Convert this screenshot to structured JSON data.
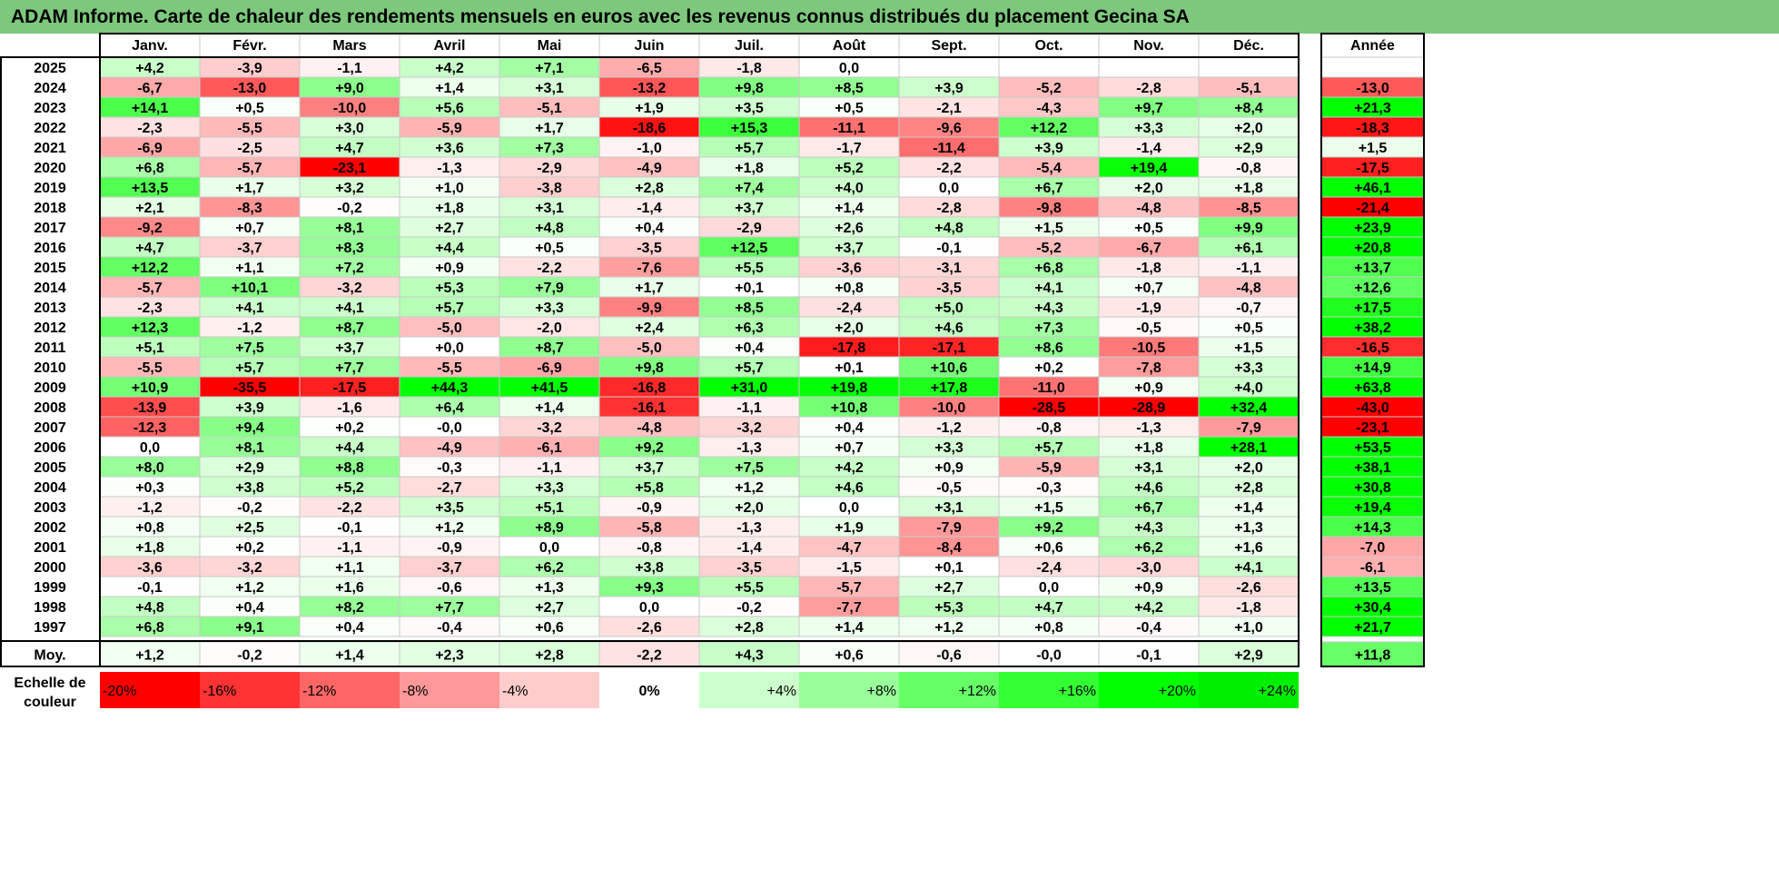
{
  "title": "ADAM Informe. Carte de chaleur des rendements mensuels en euros avec les revenus connus distribués du placement Gecina SA",
  "chart_data": {
    "type": "heatmap",
    "title": "ADAM Informe. Carte de chaleur des rendements mensuels en euros avec les revenus connus distribués du placement Gecina SA",
    "columns": [
      "Janv.",
      "Févr.",
      "Mars",
      "Avril",
      "Mai",
      "Juin",
      "Juil.",
      "Août",
      "Sept.",
      "Oct.",
      "Nov.",
      "Déc."
    ],
    "year_header": "Année",
    "rows": [
      {
        "label": "2025",
        "values": [
          "+4,2",
          "-3,9",
          "-1,1",
          "+4,2",
          "+7,1",
          "-6,5",
          "-1,8",
          "0,0",
          "",
          "",
          "",
          ""
        ],
        "year": ""
      },
      {
        "label": "2024",
        "values": [
          "-6,7",
          "-13,0",
          "+9,0",
          "+1,4",
          "+3,1",
          "-13,2",
          "+9,8",
          "+8,5",
          "+3,9",
          "-5,2",
          "-2,8",
          "-5,1"
        ],
        "year": "-13,0"
      },
      {
        "label": "2023",
        "values": [
          "+14,1",
          "+0,5",
          "-10,0",
          "+5,6",
          "-5,1",
          "+1,9",
          "+3,5",
          "+0,5",
          "-2,1",
          "-4,3",
          "+9,7",
          "+8,4"
        ],
        "year": "+21,3"
      },
      {
        "label": "2022",
        "values": [
          "-2,3",
          "-5,5",
          "+3,0",
          "-5,9",
          "+1,7",
          "-18,6",
          "+15,3",
          "-11,1",
          "-9,6",
          "+12,2",
          "+3,3",
          "+2,0"
        ],
        "year": "-18,3"
      },
      {
        "label": "2021",
        "values": [
          "-6,9",
          "-2,5",
          "+4,7",
          "+3,6",
          "+7,3",
          "-1,0",
          "+5,7",
          "-1,7",
          "-11,4",
          "+3,9",
          "-1,4",
          "+2,9"
        ],
        "year": "+1,5"
      },
      {
        "label": "2020",
        "values": [
          "+6,8",
          "-5,7",
          "-23,1",
          "-1,3",
          "-2,9",
          "-4,9",
          "+1,8",
          "+5,2",
          "-2,2",
          "-5,4",
          "+19,4",
          "-0,8"
        ],
        "year": "-17,5"
      },
      {
        "label": "2019",
        "values": [
          "+13,5",
          "+1,7",
          "+3,2",
          "+1,0",
          "-3,8",
          "+2,8",
          "+7,4",
          "+4,0",
          "0,0",
          "+6,7",
          "+2,0",
          "+1,8"
        ],
        "year": "+46,1"
      },
      {
        "label": "2018",
        "values": [
          "+2,1",
          "-8,3",
          "-0,2",
          "+1,8",
          "+3,1",
          "-1,4",
          "+3,7",
          "+1,4",
          "-2,8",
          "-9,8",
          "-4,8",
          "-8,5"
        ],
        "year": "-21,4"
      },
      {
        "label": "2017",
        "values": [
          "-9,2",
          "+0,7",
          "+8,1",
          "+2,7",
          "+4,8",
          "+0,4",
          "-2,9",
          "+2,6",
          "+4,8",
          "+1,5",
          "+0,5",
          "+9,9"
        ],
        "year": "+23,9"
      },
      {
        "label": "2016",
        "values": [
          "+4,7",
          "-3,7",
          "+8,3",
          "+4,4",
          "+0,5",
          "-3,5",
          "+12,5",
          "+3,7",
          "-0,1",
          "-5,2",
          "-6,7",
          "+6,1"
        ],
        "year": "+20,8"
      },
      {
        "label": "2015",
        "values": [
          "+12,2",
          "+1,1",
          "+7,2",
          "+0,9",
          "-2,2",
          "-7,6",
          "+5,5",
          "-3,6",
          "-3,1",
          "+6,8",
          "-1,8",
          "-1,1"
        ],
        "year": "+13,7"
      },
      {
        "label": "2014",
        "values": [
          "-5,7",
          "+10,1",
          "-3,2",
          "+5,3",
          "+7,9",
          "+1,7",
          "+0,1",
          "+0,8",
          "-3,5",
          "+4,1",
          "+0,7",
          "-4,8"
        ],
        "year": "+12,6"
      },
      {
        "label": "2013",
        "values": [
          "-2,3",
          "+4,1",
          "+4,1",
          "+5,7",
          "+3,3",
          "-9,9",
          "+8,5",
          "-2,4",
          "+5,0",
          "+4,3",
          "-1,9",
          "-0,7"
        ],
        "year": "+17,5"
      },
      {
        "label": "2012",
        "values": [
          "+12,3",
          "-1,2",
          "+8,7",
          "-5,0",
          "-2,0",
          "+2,4",
          "+6,3",
          "+2,0",
          "+4,6",
          "+7,3",
          "-0,5",
          "+0,5"
        ],
        "year": "+38,2"
      },
      {
        "label": "2011",
        "values": [
          "+5,1",
          "+7,5",
          "+3,7",
          "+0,0",
          "+8,7",
          "-5,0",
          "+0,4",
          "-17,8",
          "-17,1",
          "+8,6",
          "-10,5",
          "+1,5"
        ],
        "year": "-16,5"
      },
      {
        "label": "2010",
        "values": [
          "-5,5",
          "+5,7",
          "+7,7",
          "-5,5",
          "-6,9",
          "+9,8",
          "+5,7",
          "+0,1",
          "+10,6",
          "+0,2",
          "-7,8",
          "+3,3"
        ],
        "year": "+14,9"
      },
      {
        "label": "2009",
        "values": [
          "+10,9",
          "-35,5",
          "-17,5",
          "+44,3",
          "+41,5",
          "-16,8",
          "+31,0",
          "+19,8",
          "+17,8",
          "-11,0",
          "+0,9",
          "+4,0"
        ],
        "year": "+63,8"
      },
      {
        "label": "2008",
        "values": [
          "-13,9",
          "+3,9",
          "-1,6",
          "+6,4",
          "+1,4",
          "-16,1",
          "-1,1",
          "+10,8",
          "-10,0",
          "-28,5",
          "-28,9",
          "+32,4"
        ],
        "year": "-43,0"
      },
      {
        "label": "2007",
        "values": [
          "-12,3",
          "+9,4",
          "+0,2",
          "-0,0",
          "-3,2",
          "-4,8",
          "-3,2",
          "+0,4",
          "-1,2",
          "-0,8",
          "-1,3",
          "-7,9"
        ],
        "year": "-23,1"
      },
      {
        "label": "2006",
        "values": [
          "0,0",
          "+8,1",
          "+4,4",
          "-4,9",
          "-6,1",
          "+9,2",
          "-1,3",
          "+0,7",
          "+3,3",
          "+5,7",
          "+1,8",
          "+28,1"
        ],
        "year": "+53,5"
      },
      {
        "label": "2005",
        "values": [
          "+8,0",
          "+2,9",
          "+8,8",
          "-0,3",
          "-1,1",
          "+3,7",
          "+7,5",
          "+4,2",
          "+0,9",
          "-5,9",
          "+3,1",
          "+2,0"
        ],
        "year": "+38,1"
      },
      {
        "label": "2004",
        "values": [
          "+0,3",
          "+3,8",
          "+5,2",
          "-2,7",
          "+3,3",
          "+5,8",
          "+1,2",
          "+4,6",
          "-0,5",
          "-0,3",
          "+4,6",
          "+2,8"
        ],
        "year": "+30,8"
      },
      {
        "label": "2003",
        "values": [
          "-1,2",
          "-0,2",
          "-2,2",
          "+3,5",
          "+5,1",
          "-0,9",
          "+2,0",
          "0,0",
          "+3,1",
          "+1,5",
          "+6,7",
          "+1,4"
        ],
        "year": "+19,4"
      },
      {
        "label": "2002",
        "values": [
          "+0,8",
          "+2,5",
          "-0,1",
          "+1,2",
          "+8,9",
          "-5,8",
          "-1,3",
          "+1,9",
          "-7,9",
          "+9,2",
          "+4,3",
          "+1,3"
        ],
        "year": "+14,3"
      },
      {
        "label": "2001",
        "values": [
          "+1,8",
          "+0,2",
          "-1,1",
          "-0,9",
          "0,0",
          "-0,8",
          "-1,4",
          "-4,7",
          "-8,4",
          "+0,6",
          "+6,2",
          "+1,6"
        ],
        "year": "-7,0"
      },
      {
        "label": "2000",
        "values": [
          "-3,6",
          "-3,2",
          "+1,1",
          "-3,7",
          "+6,2",
          "+3,8",
          "-3,5",
          "-1,5",
          "+0,1",
          "-2,4",
          "-3,0",
          "+4,1"
        ],
        "year": "-6,1"
      },
      {
        "label": "1999",
        "values": [
          "-0,1",
          "+1,2",
          "+1,6",
          "-0,6",
          "+1,3",
          "+9,3",
          "+5,5",
          "-5,7",
          "+2,7",
          "0,0",
          "+0,9",
          "-2,6"
        ],
        "year": "+13,5"
      },
      {
        "label": "1998",
        "values": [
          "+4,8",
          "+0,4",
          "+8,2",
          "+7,7",
          "+2,7",
          "0,0",
          "-0,2",
          "-7,7",
          "+5,3",
          "+4,7",
          "+4,2",
          "-1,8"
        ],
        "year": "+30,4"
      },
      {
        "label": "1997",
        "values": [
          "+6,8",
          "+9,1",
          "+0,4",
          "-0,4",
          "+0,6",
          "-2,6",
          "+2,8",
          "+1,4",
          "+1,2",
          "+0,8",
          "-0,4",
          "+1,0"
        ],
        "year": "+21,7"
      }
    ],
    "average": {
      "label": "Moy.",
      "values": [
        "+1,2",
        "-0,2",
        "+1,4",
        "+2,3",
        "+2,8",
        "-2,2",
        "+4,3",
        "+0,6",
        "-0,6",
        "-0,0",
        "-0,1",
        "+2,9"
      ],
      "year": "+11,8"
    },
    "scale": {
      "label_line1": "Echelle de",
      "label_line2": "couleur",
      "steps": [
        {
          "label": "-20%",
          "color": "#ff0000"
        },
        {
          "label": "-16%",
          "color": "#ff3333"
        },
        {
          "label": "-12%",
          "color": "#ff6666"
        },
        {
          "label": "-8%",
          "color": "#ff9999"
        },
        {
          "label": "-4%",
          "color": "#ffcccc"
        },
        {
          "label": "0%",
          "color": "#ffffff"
        },
        {
          "label": "+4%",
          "color": "#ccffcc"
        },
        {
          "label": "+8%",
          "color": "#99ff99"
        },
        {
          "label": "+12%",
          "color": "#66ff66"
        },
        {
          "label": "+16%",
          "color": "#33ff33"
        },
        {
          "label": "+20%",
          "color": "#00ff00"
        },
        {
          "label": "+24%",
          "color": "#00ee00"
        }
      ]
    },
    "colors": {
      "negative": "#ff0000",
      "positive": "#00ff00",
      "neutral": "#ffffff",
      "title_band": "#7dc87d"
    }
  }
}
